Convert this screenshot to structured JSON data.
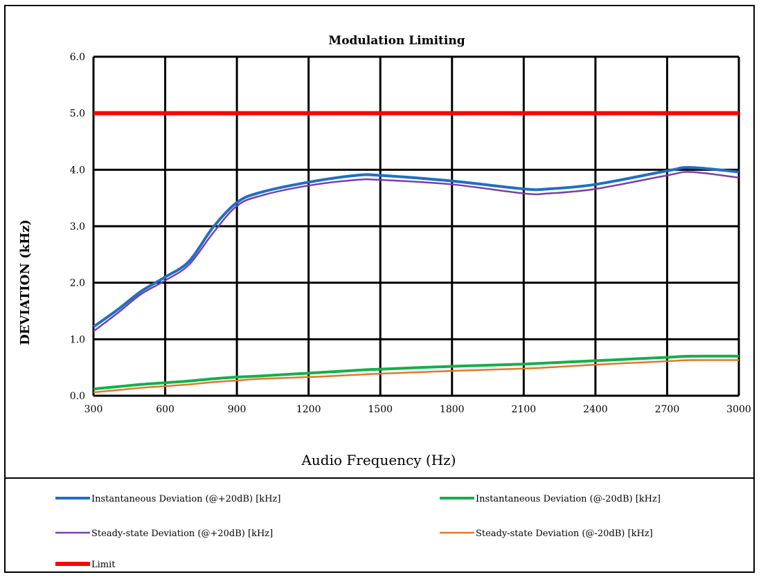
{
  "chart_data": {
    "type": "line",
    "title": "Modulation Limiting",
    "xlabel": "Audio Frequency (Hz)",
    "ylabel": "DEVIATION (kHz)",
    "xlim": [
      300,
      3000
    ],
    "ylim": [
      0,
      6
    ],
    "x_ticks": [
      "300",
      "600",
      "900",
      "1200",
      "1500",
      "1800",
      "2100",
      "2400",
      "2700",
      "3000"
    ],
    "y_ticks": [
      "0.0",
      "1.0",
      "2.0",
      "3.0",
      "4.0",
      "5.0",
      "6.0"
    ],
    "grid": true,
    "legend_position": "bottom",
    "x": [
      300,
      400,
      500,
      600,
      700,
      800,
      900,
      1000,
      1200,
      1400,
      1500,
      1800,
      2100,
      2200,
      2400,
      2700,
      2800,
      3000
    ],
    "series": [
      {
        "name": "Instantaneous Deviation (@+20dB) [kHz]",
        "color": "#1f6fc4",
        "width": 4,
        "values": [
          1.22,
          1.52,
          1.85,
          2.1,
          2.38,
          2.98,
          3.42,
          3.6,
          3.78,
          3.9,
          3.9,
          3.8,
          3.66,
          3.66,
          3.74,
          3.98,
          4.04,
          3.96
        ]
      },
      {
        "name": "Instantaneous Deviation (@-20dB) [kHz]",
        "color": "#12b04a",
        "width": 4,
        "values": [
          0.12,
          0.16,
          0.2,
          0.23,
          0.26,
          0.3,
          0.33,
          0.35,
          0.4,
          0.45,
          0.47,
          0.52,
          0.56,
          0.58,
          0.62,
          0.68,
          0.7,
          0.7
        ]
      },
      {
        "name": "Steady-state Deviation (@+20dB) [kHz]",
        "color": "#7a3ea8",
        "width": 2.5,
        "values": [
          1.14,
          1.46,
          1.8,
          2.04,
          2.32,
          2.88,
          3.36,
          3.54,
          3.72,
          3.82,
          3.82,
          3.74,
          3.58,
          3.58,
          3.66,
          3.9,
          3.96,
          3.86
        ]
      },
      {
        "name": "Steady-state Deviation (@-20dB) [kHz]",
        "color": "#e2772a",
        "width": 2.5,
        "values": [
          0.06,
          0.1,
          0.14,
          0.17,
          0.2,
          0.24,
          0.27,
          0.3,
          0.33,
          0.37,
          0.39,
          0.44,
          0.48,
          0.5,
          0.55,
          0.61,
          0.63,
          0.63
        ]
      },
      {
        "name": "Limit",
        "color": "#ff0000",
        "width": 6,
        "values": [
          5,
          5,
          5,
          5,
          5,
          5,
          5,
          5,
          5,
          5,
          5,
          5,
          5,
          5,
          5,
          5,
          5,
          5
        ]
      }
    ]
  }
}
